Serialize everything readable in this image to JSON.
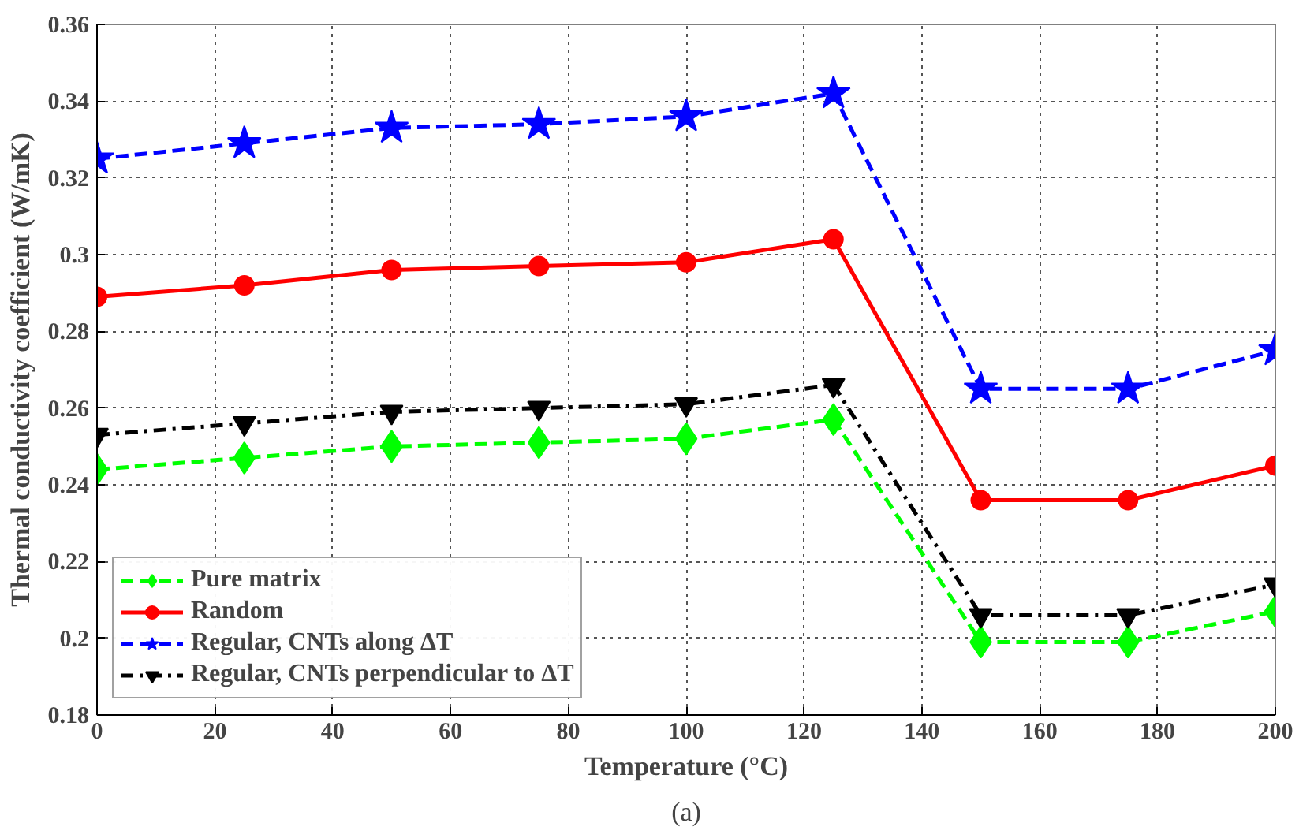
{
  "chart_data": {
    "type": "line",
    "xlabel": "Temperature (°C)",
    "ylabel": "Thermal conductivity coefficient (W/mK)",
    "annotations": [
      "(a)"
    ],
    "x": [
      0,
      25,
      50,
      75,
      100,
      125,
      150,
      175,
      200
    ],
    "series": [
      {
        "name": "Pure matrix",
        "color": "#00ff00",
        "marker": "diamond",
        "line_style": "dashed",
        "values": [
          0.244,
          0.247,
          0.25,
          0.251,
          0.252,
          0.257,
          0.199,
          0.199,
          0.207
        ]
      },
      {
        "name": "Random",
        "color": "#ff0000",
        "marker": "circle",
        "line_style": "solid",
        "values": [
          0.289,
          0.292,
          0.296,
          0.297,
          0.298,
          0.304,
          0.236,
          0.236,
          0.245
        ]
      },
      {
        "name": "Regular, CNTs along ΔT",
        "color": "#0000ff",
        "marker": "star",
        "line_style": "dashed",
        "values": [
          0.325,
          0.329,
          0.333,
          0.334,
          0.336,
          0.342,
          0.265,
          0.265,
          0.275
        ]
      },
      {
        "name": "Regular, CNTs perpendicular to ΔT",
        "color": "#000000",
        "marker": "triangle_down",
        "line_style": "dashdot",
        "values": [
          0.253,
          0.256,
          0.259,
          0.26,
          0.261,
          0.266,
          0.206,
          0.206,
          0.214
        ]
      }
    ],
    "xlim": [
      0,
      200
    ],
    "xticks": [
      0,
      20,
      40,
      60,
      80,
      100,
      120,
      140,
      160,
      180,
      200
    ],
    "ylim": [
      0.18,
      0.36
    ],
    "yticks": [
      0.18,
      0.2,
      0.22,
      0.24,
      0.26,
      0.28,
      0.3,
      0.32,
      0.34,
      0.36
    ],
    "grid": true,
    "legend": "bottom left"
  }
}
